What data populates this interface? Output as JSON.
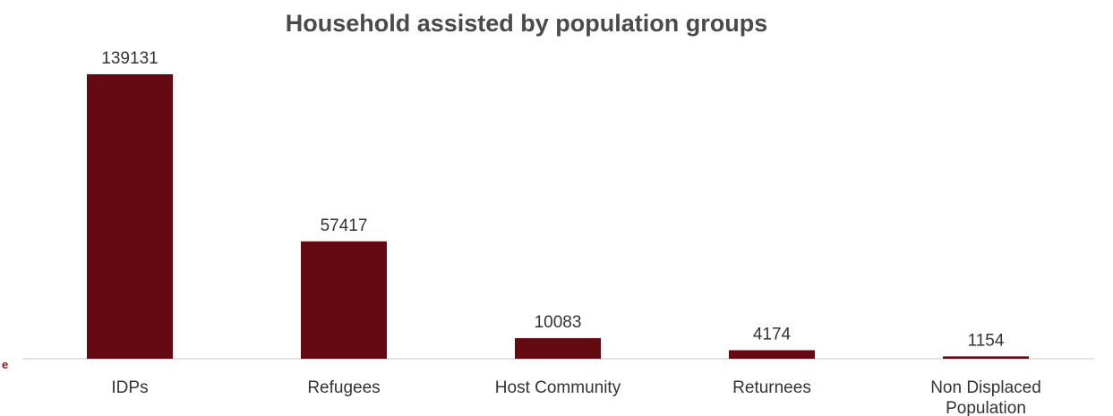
{
  "chart_data": {
    "type": "bar",
    "title": "Household assisted by population groups",
    "categories": [
      "IDPs",
      "Refugees",
      "Host Community",
      "Returnees",
      "Non Displaced Population"
    ],
    "category_lines": [
      [
        "IDPs"
      ],
      [
        "Refugees"
      ],
      [
        "Host Community"
      ],
      [
        "Returnees"
      ],
      [
        "Non Displaced",
        "Population"
      ]
    ],
    "values": [
      139131,
      57417,
      10083,
      4174,
      1154
    ],
    "data_labels": [
      "139131",
      "57417",
      "10083",
      "4174",
      "1154"
    ],
    "xlabel": "",
    "ylabel": "",
    "ylim": [
      0,
      139131
    ],
    "grid": false,
    "legend": "none"
  },
  "colors": {
    "bar": "#650912",
    "axis": "#d9d9d9",
    "title": "#4a4a4a",
    "text": "#333333"
  },
  "edge_fragment": {
    "text": "e",
    "color": "#8b1a1a"
  }
}
